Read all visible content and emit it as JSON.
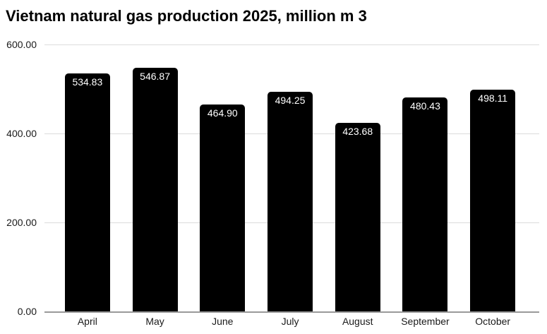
{
  "page": {
    "background": "#ffffff"
  },
  "chart_data": {
    "type": "bar",
    "title": "Vietnam natural gas production 2025, million m 3",
    "categories": [
      "April",
      "May",
      "June",
      "July",
      "August",
      "September",
      "October"
    ],
    "values": [
      534.83,
      546.87,
      464.9,
      494.25,
      423.68,
      480.43,
      498.11
    ],
    "value_labels": [
      "534.83",
      "546.87",
      "464.90",
      "494.25",
      "423.68",
      "480.43",
      "498.11"
    ],
    "xlabel": "",
    "ylabel": "",
    "ylim": [
      0,
      600
    ],
    "yticks": [
      0,
      200,
      400,
      600
    ],
    "ytick_labels": [
      "0.00",
      "200.00",
      "400.00",
      "600.00"
    ],
    "grid": true,
    "legend": "none",
    "colors": {
      "bar": "#000000",
      "bar_label": "#ffffff",
      "gridline": "#dcdcdc",
      "baseline": "#9a9a9a",
      "axis_text": "#1a1a1a",
      "title_text": "#000000"
    }
  }
}
